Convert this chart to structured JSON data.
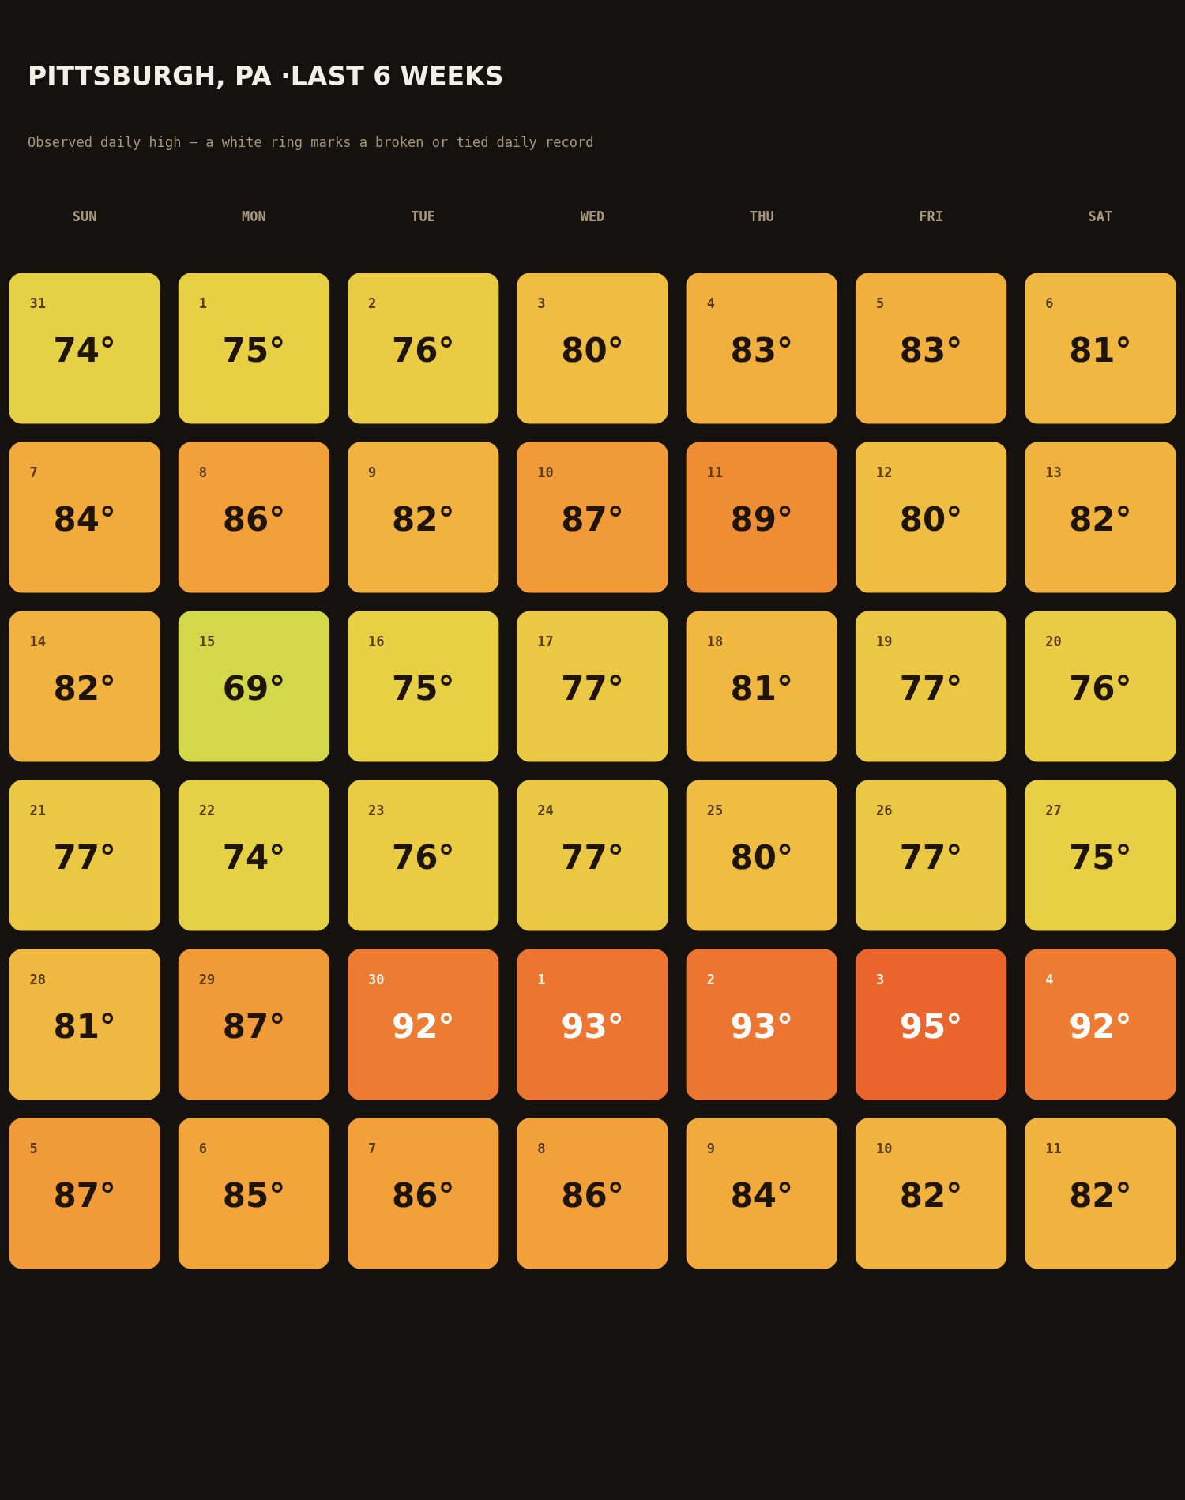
{
  "chart_data": {
    "type": "heatmap",
    "title": "PITTSBURGH, PA ·LAST 6 WEEKS",
    "subtitle": "Observed daily high — a white ring marks a broken or tied daily record",
    "categories": [
      "SUN",
      "MON",
      "TUE",
      "WED",
      "THU",
      "FRI",
      "SAT"
    ],
    "y_categories": [
      null,
      null,
      null,
      null,
      null,
      null
    ],
    "cells": [
      [
        74,
        75,
        76,
        80,
        83,
        83,
        81
      ],
      [
        84,
        86,
        82,
        87,
        89,
        80,
        82
      ],
      [
        82,
        69,
        75,
        77,
        81,
        77,
        76
      ],
      [
        77,
        74,
        76,
        77,
        80,
        77,
        75
      ],
      [
        81,
        87,
        92,
        93,
        93,
        95,
        92
      ],
      [
        87,
        85,
        86,
        86,
        84,
        82,
        82
      ]
    ],
    "cell_labels": [
      [
        "74°",
        "75°",
        "76°",
        "80°",
        "83°",
        "83°",
        "81°"
      ],
      [
        "84°",
        "86°",
        "82°",
        "87°",
        "89°",
        "80°",
        "82°"
      ],
      [
        "82°",
        "69°",
        "75°",
        "77°",
        "81°",
        "77°",
        "76°"
      ],
      [
        "77°",
        "74°",
        "76°",
        "77°",
        "80°",
        "77°",
        "75°"
      ],
      [
        "81°",
        "87°",
        "92°",
        "93°",
        "93°",
        "95°",
        "92°"
      ],
      [
        "87°",
        "85°",
        "86°",
        "86°",
        "84°",
        "82°",
        "82°"
      ]
    ],
    "annotations": [
      "31",
      "1",
      "2",
      "3",
      "4",
      "5",
      "6",
      "7",
      "8",
      "9",
      "10",
      "11",
      "12",
      "13",
      "14",
      "15",
      "16",
      "17",
      "18",
      "19",
      "20",
      "21",
      "22",
      "23",
      "24",
      "25",
      "26",
      "27",
      "28",
      "29",
      "30",
      "1",
      "2",
      "3",
      "4",
      "5",
      "6",
      "7",
      "8",
      "9",
      "10",
      "11"
    ]
  }
}
